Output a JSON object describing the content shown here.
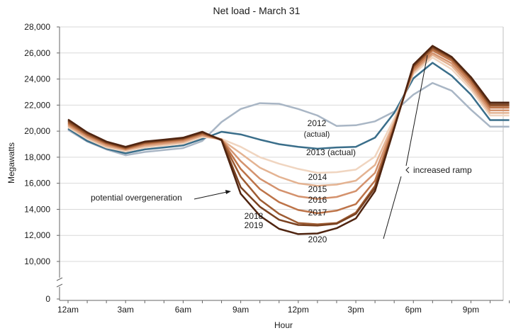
{
  "chart_data": {
    "type": "line",
    "title": "Net load - March 31",
    "xlabel": "Hour",
    "ylabel": "Megawatts",
    "ylim": [
      10000,
      28000
    ],
    "axis_break": true,
    "yticks": [
      0,
      10000,
      12000,
      14000,
      16000,
      18000,
      20000,
      22000,
      24000,
      26000,
      28000
    ],
    "ytick_labels": [
      "0",
      "10,000",
      "12,000",
      "14,000",
      "16,000",
      "18,000",
      "20,000",
      "22,000",
      "24,000",
      "26,000",
      "28,000"
    ],
    "xticks": [
      0,
      3,
      6,
      9,
      12,
      15,
      18,
      21
    ],
    "xtick_labels": [
      "12am",
      "3am",
      "6am",
      "9am",
      "12pm",
      "3pm",
      "6pm",
      "9pm"
    ],
    "grid": "horizontal",
    "x": [
      0,
      1,
      2,
      3,
      4,
      5,
      6,
      7,
      8,
      9,
      10,
      11,
      12,
      13,
      14,
      15,
      16,
      17,
      18,
      19,
      20,
      21,
      22,
      23
    ],
    "series": [
      {
        "name": "2012 (actual)",
        "color": "#a9b6c5",
        "values": [
          20100,
          19200,
          18600,
          18150,
          18400,
          18550,
          18700,
          19250,
          20700,
          21700,
          22150,
          22100,
          21700,
          21200,
          20400,
          20450,
          20750,
          21500,
          22800,
          23700,
          23100,
          21650,
          20350,
          20350
        ]
      },
      {
        "name": "2013 (actual)",
        "color": "#3a6e8a",
        "values": [
          20200,
          19250,
          18650,
          18300,
          18600,
          18750,
          18900,
          19400,
          19950,
          19750,
          19350,
          19000,
          18800,
          18650,
          18750,
          18800,
          19500,
          21400,
          24050,
          25250,
          24250,
          22800,
          20850,
          20850
        ]
      },
      {
        "name": "2014",
        "color": "#f0d5c0",
        "values": [
          20300,
          19400,
          18750,
          18450,
          18750,
          18900,
          19050,
          19550,
          19400,
          18800,
          18000,
          17500,
          17100,
          16800,
          16850,
          17050,
          18050,
          20950,
          24400,
          25650,
          24750,
          23200,
          21200,
          21200
        ]
      },
      {
        "name": "2015",
        "color": "#e4b392",
        "values": [
          20400,
          19500,
          18850,
          18550,
          18850,
          19000,
          19150,
          19650,
          19350,
          18300,
          17200,
          16500,
          16000,
          15800,
          15900,
          16200,
          17400,
          20700,
          24550,
          25850,
          25000,
          23400,
          21400,
          21400
        ]
      },
      {
        "name": "2016",
        "color": "#d4926d",
        "values": [
          20500,
          19600,
          18950,
          18600,
          18950,
          19100,
          19250,
          19700,
          19350,
          17700,
          16350,
          15500,
          15000,
          14800,
          14950,
          15400,
          16800,
          20550,
          24650,
          26000,
          25200,
          23600,
          21600,
          21600
        ]
      },
      {
        "name": "2017",
        "color": "#bd7348",
        "values": [
          20600,
          19700,
          19050,
          18650,
          19050,
          19200,
          19350,
          19800,
          19350,
          17100,
          15550,
          14550,
          13950,
          13700,
          13900,
          14400,
          16200,
          20400,
          24800,
          26200,
          25400,
          23800,
          21800,
          21800
        ]
      },
      {
        "name": "2018",
        "color": "#9e5c33",
        "values": [
          20700,
          19750,
          19100,
          18700,
          19100,
          19250,
          19400,
          19850,
          19350,
          16500,
          14750,
          13650,
          12950,
          12850,
          12950,
          13750,
          15800,
          20300,
          24950,
          26350,
          25550,
          24000,
          21950,
          21950
        ]
      },
      {
        "name": "2019",
        "color": "#7a4221",
        "values": [
          20800,
          19850,
          19150,
          18750,
          19150,
          19300,
          19450,
          19900,
          19350,
          15700,
          14200,
          13200,
          12800,
          12750,
          12900,
          13650,
          15650,
          20250,
          25000,
          26450,
          25650,
          24050,
          22050,
          22050
        ]
      },
      {
        "name": "2020",
        "color": "#4f2410",
        "values": [
          20900,
          19900,
          19200,
          18800,
          19200,
          19350,
          19500,
          19950,
          19300,
          15200,
          13500,
          12500,
          12100,
          12150,
          12550,
          13300,
          15400,
          20200,
          25100,
          26550,
          25700,
          24150,
          22200,
          22200
        ]
      }
    ],
    "series_labels": {
      "2012": "2012",
      "actual": "(actual)",
      "2013": "2013 (actual)",
      "2014": "2014",
      "2015": "2015",
      "2016": "2016",
      "2017": "2017",
      "2018": "2018",
      "2019": "2019",
      "2020": "2020"
    },
    "annotations": {
      "overgeneration": "potential overgeneration",
      "ramp": "increased ramp"
    }
  }
}
